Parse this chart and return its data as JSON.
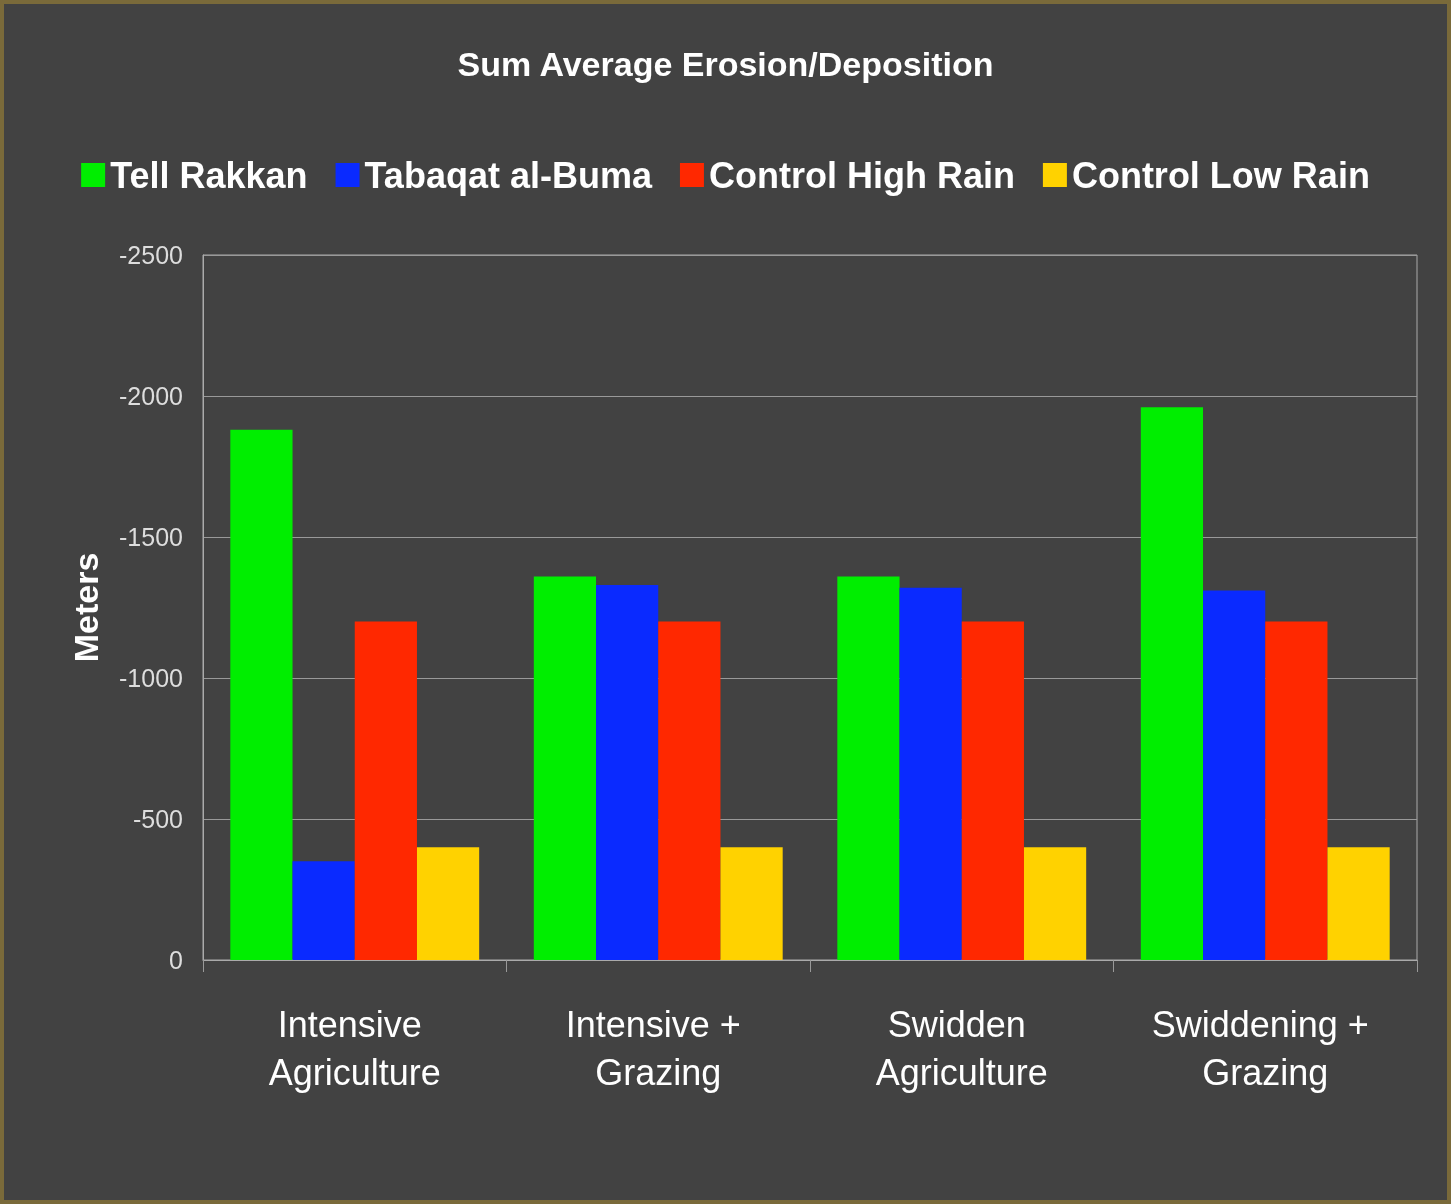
{
  "chart_data": {
    "type": "bar",
    "title": "Sum Average Erosion/Deposition",
    "ylabel": "Meters",
    "categories": [
      "Intensive Agriculture",
      "Intensive + Grazing",
      "Swidden Agriculture",
      "Swiddening + Grazing"
    ],
    "series": [
      {
        "name": "Tell Rakkan",
        "color": "#00ee00",
        "values": [
          -1880,
          -1360,
          -1360,
          -1960
        ]
      },
      {
        "name": "Tabaqat al-Buma",
        "color": "#0a2aff",
        "values": [
          -350,
          -1330,
          -1320,
          -1310
        ]
      },
      {
        "name": "Control High Rain",
        "color": "#ff2800",
        "values": [
          -1200,
          -1200,
          -1200,
          -1200
        ]
      },
      {
        "name": "Control Low Rain",
        "color": "#ffd200",
        "values": [
          -400,
          -400,
          -400,
          -400
        ]
      }
    ],
    "ylim": [
      0,
      -2500
    ],
    "yticks": [
      0,
      -500,
      -1000,
      -1500,
      -2000,
      -2500
    ],
    "grid": "y",
    "legend": "top"
  }
}
